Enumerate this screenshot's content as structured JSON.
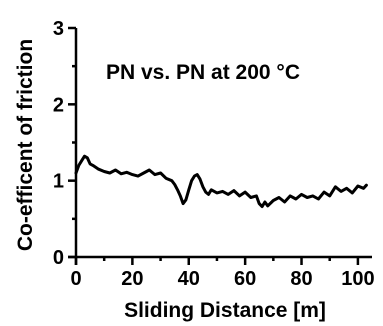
{
  "chart_data": {
    "type": "line",
    "title": "",
    "annotation": "PN vs. PN at 200 °C",
    "xlabel": "Sliding Distance [m]",
    "ylabel": "Co-efficent of friction",
    "xlim": [
      0,
      105
    ],
    "ylim": [
      0,
      3
    ],
    "xticks": [
      "0",
      "20",
      "40",
      "60",
      "80",
      "100"
    ],
    "yticks": [
      "0",
      "1",
      "2",
      "3"
    ],
    "grid": false,
    "series": [
      {
        "color": "#000000",
        "x": [
          0,
          1,
          2,
          3,
          4,
          5,
          6,
          8,
          10,
          12,
          14,
          16,
          18,
          20,
          22,
          24,
          26,
          28,
          30,
          32,
          34,
          35,
          36,
          37,
          38,
          39,
          40,
          41,
          42,
          43,
          44,
          45,
          46,
          47,
          48,
          50,
          52,
          54,
          56,
          58,
          60,
          62,
          64,
          65,
          66,
          67,
          68,
          70,
          72,
          74,
          76,
          78,
          80,
          82,
          84,
          86,
          88,
          90,
          92,
          94,
          96,
          98,
          100,
          102,
          103
        ],
        "y": [
          1.1,
          1.2,
          1.26,
          1.32,
          1.3,
          1.22,
          1.2,
          1.15,
          1.12,
          1.1,
          1.14,
          1.09,
          1.11,
          1.08,
          1.06,
          1.1,
          1.14,
          1.08,
          1.1,
          1.03,
          1.0,
          0.95,
          0.88,
          0.8,
          0.7,
          0.75,
          0.88,
          1.0,
          1.06,
          1.08,
          1.02,
          0.92,
          0.85,
          0.82,
          0.88,
          0.84,
          0.86,
          0.82,
          0.87,
          0.8,
          0.85,
          0.78,
          0.8,
          0.7,
          0.66,
          0.72,
          0.67,
          0.74,
          0.78,
          0.72,
          0.8,
          0.76,
          0.82,
          0.78,
          0.8,
          0.76,
          0.85,
          0.8,
          0.92,
          0.86,
          0.9,
          0.84,
          0.93,
          0.9,
          0.94
        ]
      }
    ]
  }
}
